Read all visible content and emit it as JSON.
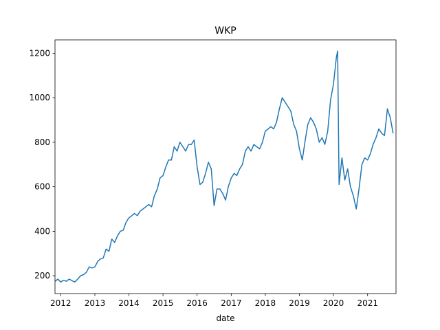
{
  "chart_data": {
    "type": "line",
    "title": "WKP",
    "xlabel": "date",
    "ylabel": "",
    "xlim": [
      "2011-11-01",
      "2021-11-01"
    ],
    "ylim": [
      120,
      1260
    ],
    "grid": false,
    "color": "#1f77b4",
    "x_ticks": [
      {
        "label": "2012",
        "date": "2012-01-01"
      },
      {
        "label": "2013",
        "date": "2013-01-01"
      },
      {
        "label": "2014",
        "date": "2014-01-01"
      },
      {
        "label": "2015",
        "date": "2015-01-01"
      },
      {
        "label": "2016",
        "date": "2016-01-01"
      },
      {
        "label": "2017",
        "date": "2017-01-01"
      },
      {
        "label": "2018",
        "date": "2018-01-01"
      },
      {
        "label": "2019",
        "date": "2019-01-01"
      },
      {
        "label": "2020",
        "date": "2020-01-01"
      },
      {
        "label": "2021",
        "date": "2021-01-01"
      }
    ],
    "y_ticks": [
      200,
      400,
      600,
      800,
      1000,
      1200
    ],
    "series": [
      {
        "name": "",
        "points": [
          [
            "2011-11-01",
            175
          ],
          [
            "2011-12-01",
            185
          ],
          [
            "2012-01-01",
            172
          ],
          [
            "2012-02-01",
            180
          ],
          [
            "2012-03-01",
            175
          ],
          [
            "2012-04-01",
            185
          ],
          [
            "2012-05-01",
            178
          ],
          [
            "2012-06-01",
            172
          ],
          [
            "2012-07-01",
            185
          ],
          [
            "2012-08-01",
            200
          ],
          [
            "2012-09-01",
            205
          ],
          [
            "2012-10-01",
            215
          ],
          [
            "2012-11-01",
            240
          ],
          [
            "2012-12-01",
            235
          ],
          [
            "2013-01-01",
            240
          ],
          [
            "2013-02-01",
            265
          ],
          [
            "2013-03-01",
            275
          ],
          [
            "2013-04-01",
            280
          ],
          [
            "2013-05-01",
            320
          ],
          [
            "2013-06-01",
            310
          ],
          [
            "2013-07-01",
            365
          ],
          [
            "2013-08-01",
            350
          ],
          [
            "2013-09-01",
            380
          ],
          [
            "2013-10-01",
            400
          ],
          [
            "2013-11-01",
            405
          ],
          [
            "2013-12-01",
            440
          ],
          [
            "2014-01-01",
            460
          ],
          [
            "2014-02-01",
            470
          ],
          [
            "2014-03-01",
            480
          ],
          [
            "2014-04-01",
            470
          ],
          [
            "2014-05-01",
            490
          ],
          [
            "2014-06-01",
            500
          ],
          [
            "2014-07-01",
            510
          ],
          [
            "2014-08-01",
            520
          ],
          [
            "2014-09-01",
            510
          ],
          [
            "2014-10-01",
            560
          ],
          [
            "2014-11-01",
            590
          ],
          [
            "2014-12-01",
            640
          ],
          [
            "2015-01-01",
            650
          ],
          [
            "2015-02-01",
            690
          ],
          [
            "2015-03-01",
            720
          ],
          [
            "2015-04-01",
            720
          ],
          [
            "2015-05-01",
            780
          ],
          [
            "2015-06-01",
            760
          ],
          [
            "2015-07-01",
            800
          ],
          [
            "2015-08-01",
            780
          ],
          [
            "2015-09-01",
            760
          ],
          [
            "2015-10-01",
            790
          ],
          [
            "2015-11-01",
            790
          ],
          [
            "2015-12-01",
            810
          ],
          [
            "2016-01-01",
            690
          ],
          [
            "2016-02-01",
            610
          ],
          [
            "2016-03-01",
            620
          ],
          [
            "2016-04-01",
            660
          ],
          [
            "2016-05-01",
            710
          ],
          [
            "2016-06-01",
            680
          ],
          [
            "2016-07-01",
            515
          ],
          [
            "2016-08-01",
            590
          ],
          [
            "2016-09-01",
            590
          ],
          [
            "2016-10-01",
            570
          ],
          [
            "2016-11-01",
            540
          ],
          [
            "2016-12-01",
            600
          ],
          [
            "2017-01-01",
            640
          ],
          [
            "2017-02-01",
            660
          ],
          [
            "2017-03-01",
            650
          ],
          [
            "2017-04-01",
            680
          ],
          [
            "2017-05-01",
            700
          ],
          [
            "2017-06-01",
            760
          ],
          [
            "2017-07-01",
            780
          ],
          [
            "2017-08-01",
            760
          ],
          [
            "2017-09-01",
            790
          ],
          [
            "2017-10-01",
            780
          ],
          [
            "2017-11-01",
            770
          ],
          [
            "2017-12-01",
            800
          ],
          [
            "2018-01-01",
            850
          ],
          [
            "2018-02-01",
            860
          ],
          [
            "2018-03-01",
            870
          ],
          [
            "2018-04-01",
            860
          ],
          [
            "2018-05-01",
            890
          ],
          [
            "2018-06-01",
            950
          ],
          [
            "2018-07-01",
            1000
          ],
          [
            "2018-08-01",
            980
          ],
          [
            "2018-09-01",
            960
          ],
          [
            "2018-10-01",
            940
          ],
          [
            "2018-11-01",
            880
          ],
          [
            "2018-12-01",
            850
          ],
          [
            "2019-01-01",
            770
          ],
          [
            "2019-02-01",
            720
          ],
          [
            "2019-03-01",
            800
          ],
          [
            "2019-04-01",
            880
          ],
          [
            "2019-05-01",
            910
          ],
          [
            "2019-06-01",
            890
          ],
          [
            "2019-07-01",
            860
          ],
          [
            "2019-08-01",
            800
          ],
          [
            "2019-09-01",
            820
          ],
          [
            "2019-10-01",
            790
          ],
          [
            "2019-11-01",
            850
          ],
          [
            "2019-12-01",
            990
          ],
          [
            "2020-01-01",
            1060
          ],
          [
            "2020-02-01",
            1180
          ],
          [
            "2020-02-15",
            1210
          ],
          [
            "2020-03-01",
            610
          ],
          [
            "2020-04-01",
            730
          ],
          [
            "2020-05-01",
            630
          ],
          [
            "2020-06-01",
            680
          ],
          [
            "2020-07-01",
            600
          ],
          [
            "2020-08-01",
            560
          ],
          [
            "2020-09-01",
            500
          ],
          [
            "2020-10-01",
            590
          ],
          [
            "2020-11-01",
            700
          ],
          [
            "2020-12-01",
            730
          ],
          [
            "2021-01-01",
            720
          ],
          [
            "2021-02-01",
            750
          ],
          [
            "2021-03-01",
            790
          ],
          [
            "2021-04-01",
            820
          ],
          [
            "2021-05-01",
            860
          ],
          [
            "2021-06-01",
            840
          ],
          [
            "2021-07-01",
            830
          ],
          [
            "2021-08-01",
            950
          ],
          [
            "2021-09-01",
            910
          ],
          [
            "2021-10-01",
            840
          ]
        ]
      }
    ]
  }
}
